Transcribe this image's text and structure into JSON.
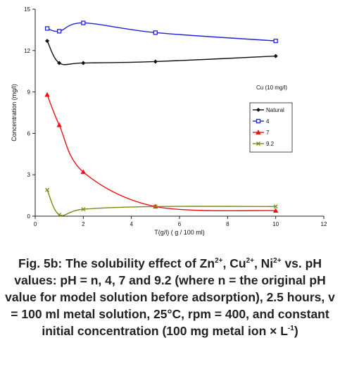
{
  "chart_data": {
    "type": "line",
    "title": "",
    "xlabel": "T(g/l) ( g / 100 ml)",
    "ylabel": "Concentration (mg/l)",
    "xlim": [
      0,
      12
    ],
    "ylim": [
      0,
      15
    ],
    "xticks": [
      0,
      2,
      4,
      6,
      8,
      10,
      12
    ],
    "yticks": [
      0,
      3,
      6,
      9,
      12,
      15
    ],
    "grid": false,
    "legend_position": "right",
    "annotation": "Cu (10 mg/l)",
    "series": [
      {
        "name": "Natural",
        "color": "#111111",
        "marker": "diamond",
        "x": [
          0.5,
          1,
          2,
          5,
          10
        ],
        "y": [
          12.7,
          11.1,
          11.1,
          11.2,
          11.6
        ]
      },
      {
        "name": "4",
        "color": "#2222dd",
        "marker": "square",
        "x": [
          0.5,
          1,
          2,
          5,
          10
        ],
        "y": [
          13.6,
          13.4,
          14.0,
          13.3,
          12.7
        ]
      },
      {
        "name": "7",
        "color": "#ee1111",
        "marker": "triangle",
        "x": [
          0.5,
          1,
          2,
          5,
          10
        ],
        "y": [
          8.8,
          6.6,
          3.2,
          0.7,
          0.4
        ]
      },
      {
        "name": "9.2",
        "color": "#7a8a10",
        "marker": "x",
        "x": [
          0.5,
          1,
          2,
          5,
          10
        ],
        "y": [
          1.9,
          0.1,
          0.5,
          0.7,
          0.7
        ]
      }
    ]
  },
  "caption": {
    "p1": "Fig. 5b: The solubility effect of Zn",
    "s1": "2+",
    "p2": ", Cu",
    "s2": "2+",
    "p3": ", Ni",
    "s3": "2+",
    "p4": " vs. pH values: pH = n, 4, 7 and 9.2 (where n = the original pH value for model solution before adsorption), 2.5 hours, v = 100 ml metal solution, 25°C, rpm = 400, and constant initial concentration (100 mg metal ion × L",
    "s4": "-1",
    "p5": ")"
  }
}
